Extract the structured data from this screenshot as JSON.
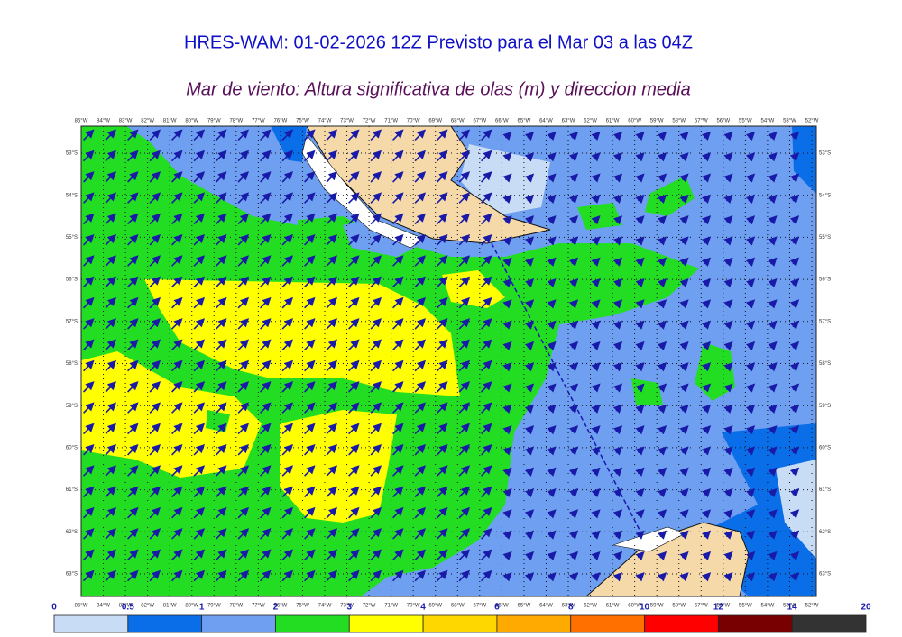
{
  "header": {
    "title": "HRES-WAM: 01-02-2026 12Z Previsto para el Mar 03 a las 04Z",
    "subtitle": "Mar de viento: Altura significativa de olas (m) y direccion media"
  },
  "map": {
    "longitudes": [
      "85°W",
      "84°W",
      "83°W",
      "82°W",
      "81°W",
      "80°W",
      "79°W",
      "78°W",
      "77°W",
      "76°W",
      "75°W",
      "74°W",
      "73°W",
      "72°W",
      "71°W",
      "70°W",
      "69°W",
      "68°W",
      "67°W",
      "66°W",
      "65°W",
      "64°W",
      "63°W",
      "62°W",
      "61°W",
      "60°W",
      "59°W",
      "58°W",
      "57°W",
      "56°W",
      "55°W",
      "54°W",
      "53°W",
      "52°W"
    ],
    "latitudes": [
      "53°S",
      "54°S",
      "55°S",
      "56°S",
      "57°S",
      "58°S",
      "59°S",
      "60°S",
      "61°S",
      "62°S",
      "63°S"
    ]
  },
  "colorbar": {
    "levels": [
      0,
      0.5,
      1,
      2,
      3,
      4,
      6,
      8,
      10,
      12,
      14,
      20
    ],
    "colors": [
      "#c8dcf5",
      "#0a6ee8",
      "#6f9ff0",
      "#22dd22",
      "#ffff00",
      "#ffd700",
      "#ffaa00",
      "#ff7000",
      "#ff0000",
      "#780000",
      "#333333"
    ]
  }
}
